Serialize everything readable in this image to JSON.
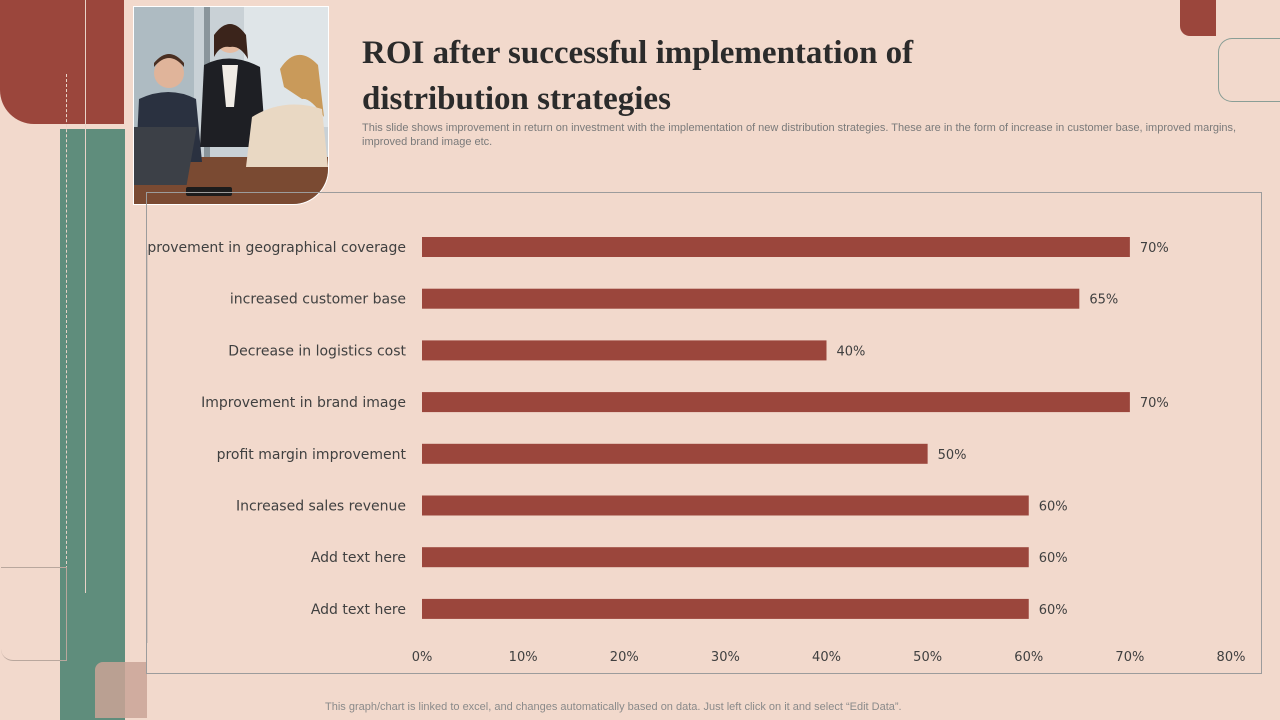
{
  "slide": {
    "title_line1": "ROI after successful implementation  of",
    "title_line2": "distribution  strategies",
    "subtitle": "This slide shows improvement in return on investment with the implementation of new distribution strategies. These are in the form of increase in customer base, improved margins, improved brand image etc.",
    "footer": "This graph/chart is linked to excel,  and changes automatically based on data. Just left click on it and select “Edit Data”."
  },
  "colors": {
    "bar": "#9b463c",
    "label_text": "#404040",
    "background": "#f2d9cc"
  },
  "chart_data": {
    "type": "bar",
    "orientation": "horizontal",
    "categories": [
      "Improvement in geographical coverage",
      "increased customer base",
      "Decrease in logistics cost",
      "Improvement in brand image",
      "profit margin improvement",
      "Increased sales revenue",
      "Add text here",
      "Add text here"
    ],
    "values": [
      70,
      65,
      40,
      70,
      50,
      60,
      60,
      60
    ],
    "value_labels": [
      "70%",
      "65%",
      "40%",
      "70%",
      "50%",
      "60%",
      "60%",
      "60%"
    ],
    "xlim": [
      0,
      80
    ],
    "x_ticks": [
      0,
      10,
      20,
      30,
      40,
      50,
      60,
      70,
      80
    ],
    "x_tick_labels": [
      "0%",
      "10%",
      "20%",
      "30%",
      "40%",
      "50%",
      "60%",
      "70%",
      "80%"
    ],
    "title": "",
    "xlabel": "",
    "ylabel": "",
    "grid": false,
    "legend": "none"
  }
}
